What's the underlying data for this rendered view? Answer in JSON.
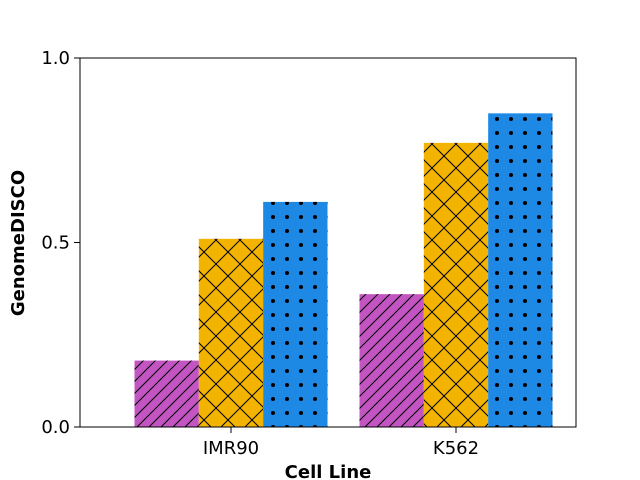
{
  "chart_data": {
    "type": "bar",
    "categories": [
      "IMR90",
      "K562"
    ],
    "series": [
      {
        "values": [
          0.18,
          0.36
        ],
        "color": "#c355c2",
        "hatch": "diagonal"
      },
      {
        "values": [
          0.51,
          0.77
        ],
        "color": "#f2b400",
        "hatch": "crosshatch"
      },
      {
        "values": [
          0.61,
          0.85
        ],
        "color": "#1e88e5",
        "hatch": "dots"
      }
    ],
    "xlabel": "Cell Line",
    "ylabel": "GenomeDISCO",
    "ylim": [
      0.0,
      1.0
    ],
    "yticks": [
      "0.0",
      "0.5",
      "1.0"
    ],
    "grid": false,
    "legend": "none"
  }
}
